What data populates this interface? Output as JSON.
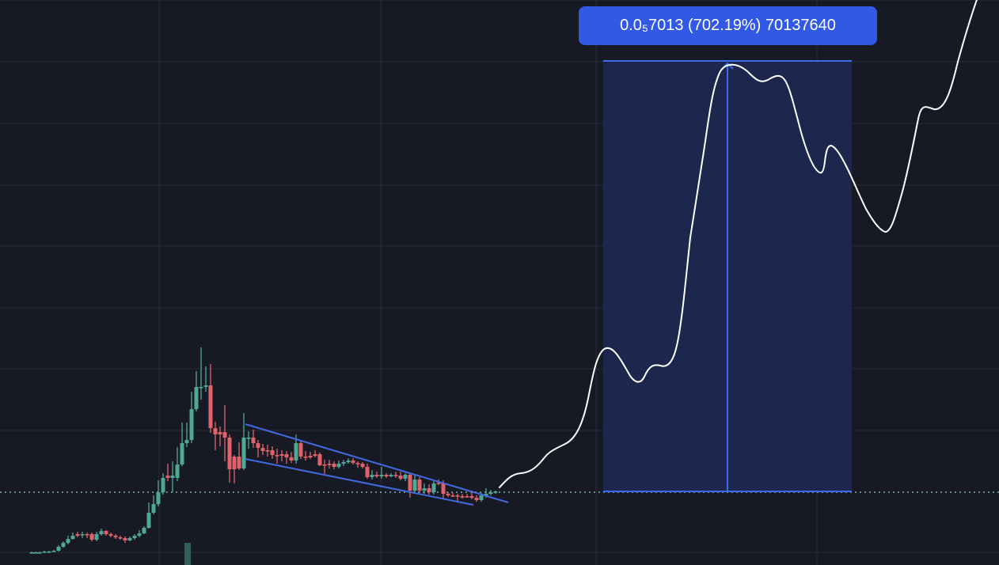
{
  "chart_data": {
    "type": "candlestick",
    "grid": true,
    "colors": {
      "background": "#171924",
      "grid": "#2a2d3a",
      "up": "#4fa894",
      "down": "#e0626a",
      "pattern_lines": "#4169e1",
      "projection": "#ffffff",
      "measure_fill": "#1d2750",
      "measure_line": "#3b6cf0",
      "label_bg": "#3159e6",
      "baseline": "#7fb5b0"
    },
    "candles": [
      [
        40,
        699,
        698,
        698,
        697,
        "up"
      ],
      [
        45,
        698,
        698,
        698,
        697,
        "up"
      ],
      [
        50,
        698,
        698,
        698,
        697,
        "up"
      ],
      [
        56,
        698,
        697,
        698,
        696,
        "up"
      ],
      [
        62,
        697,
        697,
        698,
        696,
        "up"
      ],
      [
        68,
        697,
        696,
        697,
        695,
        "up"
      ],
      [
        74,
        696,
        691,
        697,
        689,
        "up"
      ],
      [
        80,
        691,
        686,
        692,
        684,
        "up"
      ],
      [
        86,
        686,
        681,
        688,
        677,
        "up"
      ],
      [
        92,
        681,
        677,
        682,
        673,
        "up"
      ],
      [
        98,
        677,
        675,
        679,
        672,
        "down"
      ],
      [
        104,
        675,
        676,
        680,
        672,
        "up"
      ],
      [
        110,
        676,
        675,
        680,
        673,
        "down"
      ],
      [
        116,
        675,
        682,
        684,
        673,
        "down"
      ],
      [
        122,
        682,
        675,
        684,
        672,
        "up"
      ],
      [
        128,
        675,
        671,
        677,
        668,
        "up"
      ],
      [
        134,
        671,
        675,
        677,
        670,
        "down"
      ],
      [
        140,
        675,
        677,
        679,
        673,
        "down"
      ],
      [
        146,
        677,
        679,
        681,
        675,
        "down"
      ],
      [
        152,
        679,
        680,
        682,
        677,
        "down"
      ],
      [
        158,
        680,
        683,
        686,
        678,
        "down"
      ],
      [
        164,
        683,
        680,
        684,
        678,
        "up"
      ],
      [
        170,
        680,
        677,
        682,
        675,
        "up"
      ],
      [
        176,
        677,
        674,
        679,
        670,
        "up"
      ],
      [
        182,
        674,
        667,
        675,
        665,
        "up"
      ],
      [
        188,
        667,
        648,
        668,
        635,
        "up"
      ],
      [
        194,
        648,
        637,
        650,
        626,
        "up"
      ],
      [
        200,
        637,
        622,
        640,
        607,
        "up"
      ],
      [
        206,
        622,
        604,
        625,
        598,
        "up"
      ],
      [
        212,
        604,
        601,
        608,
        586,
        "down"
      ],
      [
        218,
        601,
        604,
        622,
        583,
        "up"
      ],
      [
        224,
        604,
        587,
        608,
        565,
        "up"
      ],
      [
        230,
        587,
        560,
        589,
        534,
        "up"
      ],
      [
        236,
        560,
        556,
        565,
        534,
        "up"
      ],
      [
        242,
        556,
        517,
        560,
        495,
        "up"
      ],
      [
        248,
        517,
        489,
        520,
        469,
        "up"
      ],
      [
        254,
        489,
        489,
        505,
        439,
        "up"
      ],
      [
        260,
        489,
        487,
        495,
        463,
        "up"
      ],
      [
        266,
        487,
        541,
        547,
        460,
        "down"
      ],
      [
        272,
        541,
        549,
        569,
        533,
        "down"
      ],
      [
        278,
        549,
        546,
        564,
        539,
        "down"
      ],
      [
        284,
        546,
        553,
        583,
        512,
        "down"
      ],
      [
        290,
        553,
        593,
        610,
        549,
        "down"
      ],
      [
        296,
        593,
        577,
        611,
        575,
        "down"
      ],
      [
        302,
        577,
        592,
        594,
        559,
        "down"
      ],
      [
        308,
        592,
        553,
        594,
        522,
        "up"
      ],
      [
        314,
        553,
        553,
        567,
        545,
        "up"
      ],
      [
        320,
        553,
        560,
        566,
        543,
        "down"
      ],
      [
        326,
        560,
        566,
        578,
        556,
        "down"
      ],
      [
        332,
        566,
        570,
        575,
        561,
        "down"
      ],
      [
        338,
        570,
        569,
        577,
        562,
        "down"
      ],
      [
        344,
        569,
        575,
        580,
        564,
        "down"
      ],
      [
        350,
        575,
        576,
        586,
        567,
        "down"
      ],
      [
        356,
        576,
        574,
        583,
        569,
        "down"
      ],
      [
        362,
        574,
        578,
        586,
        570,
        "down"
      ],
      [
        368,
        578,
        582,
        585,
        571,
        "down"
      ],
      [
        374,
        582,
        560,
        586,
        549,
        "up"
      ],
      [
        380,
        560,
        577,
        580,
        557,
        "down"
      ],
      [
        386,
        577,
        578,
        582,
        570,
        "down"
      ],
      [
        392,
        578,
        576,
        580,
        571,
        "down"
      ],
      [
        398,
        576,
        574,
        578,
        569,
        "down"
      ],
      [
        404,
        574,
        588,
        589,
        572,
        "down"
      ],
      [
        410,
        588,
        587,
        599,
        581,
        "down"
      ],
      [
        416,
        587,
        586,
        592,
        581,
        "down"
      ],
      [
        422,
        586,
        590,
        593,
        583,
        "down"
      ],
      [
        428,
        590,
        586,
        592,
        582,
        "up"
      ],
      [
        434,
        586,
        584,
        589,
        581,
        "up"
      ],
      [
        440,
        584,
        582,
        586,
        579,
        "up"
      ],
      [
        446,
        582,
        585,
        587,
        579,
        "down"
      ],
      [
        452,
        585,
        586,
        591,
        583,
        "down"
      ],
      [
        458,
        586,
        590,
        592,
        584,
        "down"
      ],
      [
        464,
        590,
        603,
        605,
        586,
        "down"
      ],
      [
        470,
        603,
        600,
        606,
        594,
        "up"
      ],
      [
        476,
        600,
        602,
        604,
        596,
        "down"
      ],
      [
        482,
        602,
        600,
        605,
        590,
        "up"
      ],
      [
        488,
        600,
        602,
        604,
        598,
        "down"
      ],
      [
        494,
        602,
        600,
        603,
        598,
        "up"
      ],
      [
        500,
        600,
        601,
        604,
        596,
        "down"
      ],
      [
        506,
        601,
        605,
        607,
        596,
        "down"
      ],
      [
        512,
        605,
        600,
        608,
        598,
        "up"
      ],
      [
        518,
        600,
        620,
        629,
        598,
        "down"
      ],
      [
        524,
        620,
        606,
        624,
        600,
        "up"
      ],
      [
        530,
        606,
        620,
        623,
        603,
        "down"
      ],
      [
        536,
        620,
        617,
        624,
        611,
        "up"
      ],
      [
        542,
        617,
        622,
        625,
        612,
        "down"
      ],
      [
        548,
        622,
        611,
        625,
        608,
        "up"
      ],
      [
        554,
        611,
        610,
        613,
        606,
        "down"
      ],
      [
        560,
        610,
        624,
        630,
        607,
        "down"
      ],
      [
        566,
        624,
        626,
        628,
        622,
        "down"
      ],
      [
        572,
        626,
        626,
        628,
        623,
        "down"
      ],
      [
        578,
        626,
        627,
        634,
        624,
        "down"
      ],
      [
        584,
        627,
        627,
        630,
        624,
        "down"
      ],
      [
        590,
        627,
        627,
        629,
        624,
        "down"
      ],
      [
        596,
        627,
        629,
        631,
        620,
        "down"
      ],
      [
        602,
        629,
        632,
        634,
        626,
        "down"
      ],
      [
        608,
        632,
        626,
        634,
        623,
        "up"
      ],
      [
        614,
        626,
        624,
        629,
        617,
        "up"
      ],
      [
        620,
        624,
        622,
        626,
        619,
        "up"
      ],
      [
        626,
        622,
        621,
        624,
        620,
        "up"
      ]
    ],
    "annotation": {
      "label": "0.0₅7013 (702.19%) 70137640"
    }
  }
}
